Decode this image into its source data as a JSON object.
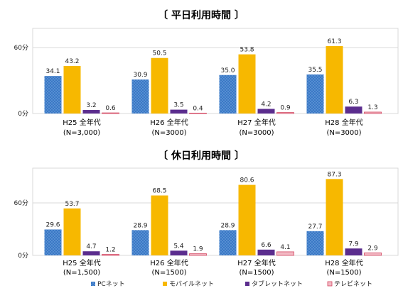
{
  "colors": {
    "pc": "#3a78c5",
    "mobile": "#f7b800",
    "tablet": "#5b2d8e",
    "tv": "#f2b9c4",
    "tv_border": "#d4455f",
    "grid": "#d9d9d9"
  },
  "legend": [
    {
      "key": "pc",
      "label": "PCネット"
    },
    {
      "key": "mobile",
      "label": "モバイルネット"
    },
    {
      "key": "tablet",
      "label": "タブレットネット"
    },
    {
      "key": "tv",
      "label": "テレビネット"
    }
  ],
  "chart_data": [
    {
      "type": "bar",
      "title": "〔 平日利用時間 〕",
      "yticks": [
        "0分",
        "60分"
      ],
      "ylim": [
        0,
        70
      ],
      "grid": true,
      "legend_position": "bottom",
      "categories": [
        {
          "line1": "H25 全年代",
          "line2": "(N=3,000)"
        },
        {
          "line1": "H26 全年代",
          "line2": "(N=3000)"
        },
        {
          "line1": "H27 全年代",
          "line2": "(N=3000)"
        },
        {
          "line1": "H28 全年代",
          "line2": "(N=3000)"
        }
      ],
      "series": [
        {
          "key": "pc",
          "name": "PCネット",
          "values": [
            34.1,
            30.9,
            35.0,
            35.5
          ],
          "labels": [
            "34.1",
            "30.9",
            "35.0",
            "35.5"
          ]
        },
        {
          "key": "mobile",
          "name": "モバイルネット",
          "values": [
            43.2,
            50.5,
            53.8,
            61.3
          ],
          "labels": [
            "43.2",
            "50.5",
            "53.8",
            "61.3"
          ]
        },
        {
          "key": "tablet",
          "name": "タブレットネット",
          "values": [
            3.2,
            3.5,
            4.2,
            6.3
          ],
          "labels": [
            "3.2",
            "3.5",
            "4.2",
            "6.3"
          ]
        },
        {
          "key": "tv",
          "name": "テレビネット",
          "values": [
            0.6,
            0.4,
            0.9,
            1.3
          ],
          "labels": [
            "0.6",
            "0.4",
            "0.9",
            "1.3"
          ]
        }
      ]
    },
    {
      "type": "bar",
      "title": "〔 休日利用時間 〕",
      "yticks": [
        "0分",
        "60分"
      ],
      "ylim": [
        0,
        92
      ],
      "grid": true,
      "legend_position": "bottom",
      "categories": [
        {
          "line1": "H25 全年代",
          "line2": "(N=1,500)"
        },
        {
          "line1": "H26 全年代",
          "line2": "(N=1500)"
        },
        {
          "line1": "H27 全年代",
          "line2": "(N=1500)"
        },
        {
          "line1": "H28 全年代",
          "line2": "(N=1500)"
        }
      ],
      "series": [
        {
          "key": "pc",
          "name": "PCネット",
          "values": [
            29.6,
            28.9,
            28.9,
            27.7
          ],
          "labels": [
            "29.6",
            "28.9",
            "28.9",
            "27.7"
          ]
        },
        {
          "key": "mobile",
          "name": "モバイルネット",
          "values": [
            53.7,
            68.5,
            80.6,
            87.3
          ],
          "labels": [
            "53.7",
            "68.5",
            "80.6",
            "87.3"
          ]
        },
        {
          "key": "tablet",
          "name": "タブレットネット",
          "values": [
            4.7,
            5.4,
            6.6,
            7.9
          ],
          "labels": [
            "4.7",
            "5.4",
            "6.6",
            "7.9"
          ]
        },
        {
          "key": "tv",
          "name": "テレビネット",
          "values": [
            1.2,
            1.9,
            4.1,
            2.9
          ],
          "labels": [
            "1.2",
            "1.9",
            "4.1",
            "2.9"
          ]
        }
      ]
    }
  ]
}
